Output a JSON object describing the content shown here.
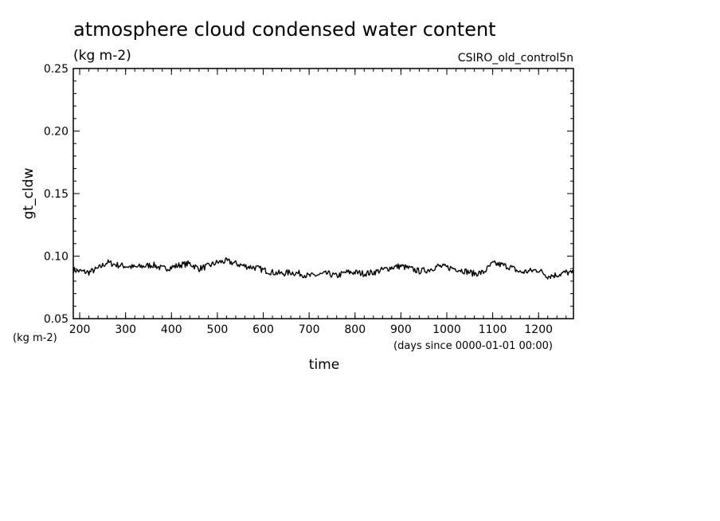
{
  "chart_data": {
    "type": "line",
    "title": "atmosphere cloud condensed water content",
    "title_units": "(kg m-2)",
    "run_label": "CSIRO_old_control5n",
    "xlabel": "time",
    "x_units": "(days since 0000-01-01 00:00)",
    "ylabel": "gt_cldw",
    "y_units": "(kg m-2)",
    "xlim": [
      186,
      1276
    ],
    "ylim": [
      0.05,
      0.25
    ],
    "x_ticks": [
      200,
      300,
      400,
      500,
      600,
      700,
      800,
      900,
      1000,
      1100,
      1200
    ],
    "x_tick_labels": [
      "200",
      "300",
      "400",
      "500",
      "600",
      "700",
      "800",
      "900",
      "1000",
      "1100",
      "1200"
    ],
    "y_ticks": [
      0.05,
      0.1,
      0.15,
      0.2,
      0.25
    ],
    "y_tick_labels": [
      "0.05",
      "0.10",
      "0.15",
      "0.20",
      "0.25"
    ],
    "grid": false,
    "series": [
      {
        "color": "#000000",
        "x": [
          186,
          200,
          220,
          240,
          260,
          280,
          300,
          320,
          340,
          360,
          380,
          400,
          420,
          440,
          460,
          480,
          500,
          520,
          540,
          560,
          580,
          600,
          620,
          640,
          660,
          680,
          700,
          720,
          740,
          760,
          780,
          800,
          820,
          840,
          860,
          880,
          900,
          920,
          940,
          960,
          980,
          1000,
          1020,
          1040,
          1060,
          1080,
          1100,
          1120,
          1140,
          1160,
          1180,
          1200,
          1220,
          1240,
          1260,
          1276
        ],
        "y": [
          0.089,
          0.088,
          0.087,
          0.09,
          0.095,
          0.093,
          0.092,
          0.091,
          0.092,
          0.093,
          0.09,
          0.091,
          0.093,
          0.094,
          0.09,
          0.092,
          0.095,
          0.096,
          0.094,
          0.092,
          0.091,
          0.089,
          0.087,
          0.086,
          0.087,
          0.086,
          0.084,
          0.085,
          0.086,
          0.084,
          0.087,
          0.087,
          0.086,
          0.087,
          0.089,
          0.091,
          0.092,
          0.09,
          0.088,
          0.089,
          0.092,
          0.091,
          0.09,
          0.088,
          0.086,
          0.087,
          0.094,
          0.093,
          0.091,
          0.087,
          0.088,
          0.089,
          0.084,
          0.085,
          0.087,
          0.086
        ]
      }
    ]
  }
}
